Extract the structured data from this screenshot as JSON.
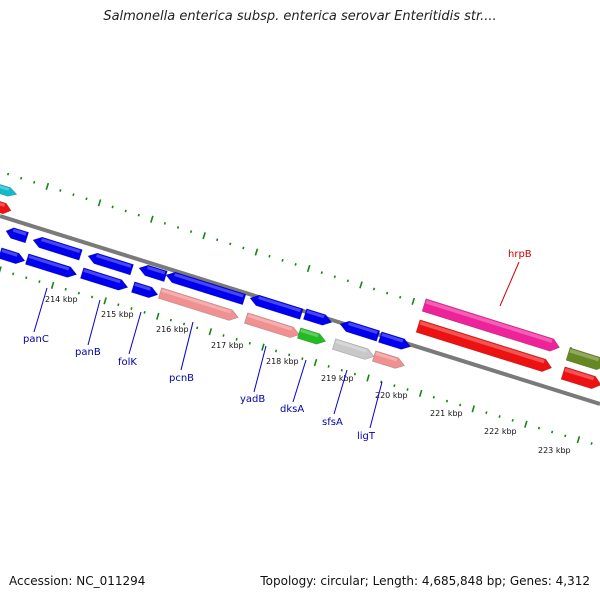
{
  "title": "Salmonella enterica subsp. enterica serovar Enteritidis str....",
  "accession": "Accession: NC_011294",
  "topology": "Topology: circular; Length: 4,685,848 bp; Genes: 4,312",
  "colors": {
    "cds_blue": "#0000ee",
    "pink": "#f09090",
    "green": "#22bb22",
    "gray": "#c8c8c8",
    "magenta": "#ee2299",
    "red": "#ee1111",
    "olive": "#668822",
    "cyan": "#11bbcc",
    "tick_green": "#118811",
    "backbone": "#808080",
    "label_blue": "#0000aa",
    "label_red": "#cc0000"
  },
  "tick_labels": [
    "214 kbp",
    "215 kbp",
    "216 kbp",
    "217 kbp",
    "218 kbp",
    "219 kbp",
    "220 kbp",
    "221 kbp",
    "222 kbp",
    "223 kbp"
  ],
  "gene_labels": [
    "panC",
    "panB",
    "folK",
    "pcnB",
    "yadB",
    "dksA",
    "sfsA",
    "ligT",
    "hrpB"
  ]
}
